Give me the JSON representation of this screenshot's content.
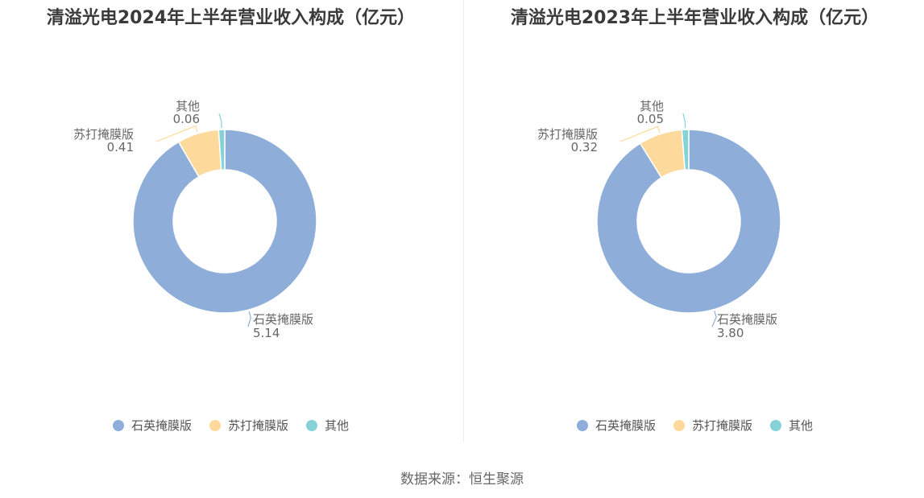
{
  "chart_data": [
    {
      "type": "pie",
      "title": "清溢光电2024年上半年营业收入构成（亿元）",
      "categories": [
        "石英掩膜版",
        "苏打掩膜版",
        "其他"
      ],
      "values": [
        5.14,
        0.41,
        0.06
      ],
      "value_labels": [
        "5.14",
        "0.41",
        "0.06"
      ],
      "colors": [
        "#8eadd9",
        "#fdd99b",
        "#85d3d9"
      ],
      "legend": "bottom"
    },
    {
      "type": "pie",
      "title": "清溢光电2023年上半年营业收入构成（亿元）",
      "categories": [
        "石英掩膜版",
        "苏打掩膜版",
        "其他"
      ],
      "values": [
        3.8,
        0.32,
        0.05
      ],
      "value_labels": [
        "3.80",
        "0.32",
        "0.05"
      ],
      "colors": [
        "#8eadd9",
        "#fdd99b",
        "#85d3d9"
      ],
      "legend": "bottom"
    }
  ],
  "source": "数据来源：恒生聚源"
}
